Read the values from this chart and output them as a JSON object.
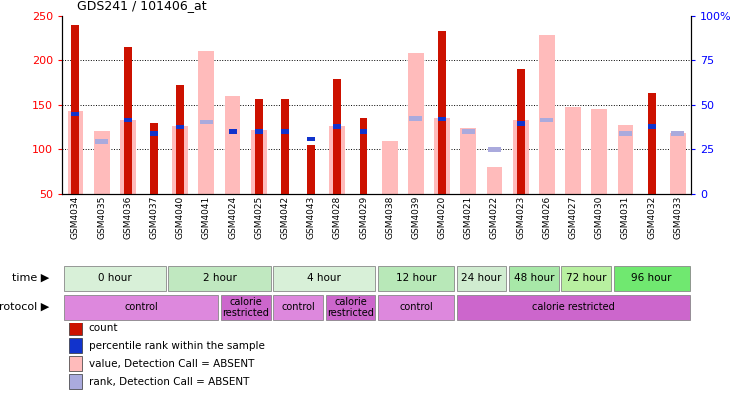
{
  "title": "GDS241 / 101406_at",
  "samples": [
    "GSM4034",
    "GSM4035",
    "GSM4036",
    "GSM4037",
    "GSM4040",
    "GSM4041",
    "GSM4024",
    "GSM4025",
    "GSM4042",
    "GSM4043",
    "GSM4028",
    "GSM4029",
    "GSM4038",
    "GSM4039",
    "GSM4020",
    "GSM4021",
    "GSM4022",
    "GSM4023",
    "GSM4026",
    "GSM4027",
    "GSM4030",
    "GSM4031",
    "GSM4032",
    "GSM4033"
  ],
  "count_values": [
    240,
    0,
    215,
    130,
    172,
    0,
    0,
    157,
    157,
    105,
    179,
    135,
    0,
    0,
    233,
    0,
    0,
    190,
    0,
    0,
    0,
    0,
    163,
    0
  ],
  "absent_value": [
    143,
    121,
    133,
    0,
    126,
    210,
    160,
    122,
    0,
    0,
    126,
    0,
    110,
    208,
    135,
    124,
    80,
    133,
    228,
    148,
    146,
    127,
    0,
    118
  ],
  "percentile_count": [
    140,
    0,
    133,
    118,
    125,
    0,
    120,
    120,
    120,
    112,
    126,
    120,
    0,
    0,
    134,
    0,
    0,
    129,
    0,
    0,
    0,
    0,
    126,
    0
  ],
  "percentile_absent": [
    0,
    109,
    0,
    0,
    0,
    131,
    0,
    0,
    0,
    0,
    0,
    0,
    0,
    135,
    0,
    120,
    100,
    0,
    133,
    0,
    0,
    118,
    0,
    118
  ],
  "time_labels": [
    {
      "label": "0 hour",
      "start": 0,
      "end": 4,
      "color": "#d8f0d8"
    },
    {
      "label": "2 hour",
      "start": 4,
      "end": 8,
      "color": "#c0e8c0"
    },
    {
      "label": "4 hour",
      "start": 8,
      "end": 12,
      "color": "#d8f0d8"
    },
    {
      "label": "12 hour",
      "start": 12,
      "end": 15,
      "color": "#b8e8b8"
    },
    {
      "label": "24 hour",
      "start": 15,
      "end": 17,
      "color": "#d0ecd0"
    },
    {
      "label": "48 hour",
      "start": 17,
      "end": 19,
      "color": "#a8e8a8"
    },
    {
      "label": "72 hour",
      "start": 19,
      "end": 21,
      "color": "#b8f0a0"
    },
    {
      "label": "96 hour",
      "start": 21,
      "end": 24,
      "color": "#70e870"
    }
  ],
  "protocol_labels": [
    {
      "label": "control",
      "start": 0,
      "end": 6,
      "color": "#dd88dd"
    },
    {
      "label": "calorie\nrestricted",
      "start": 6,
      "end": 8,
      "color": "#cc66cc"
    },
    {
      "label": "control",
      "start": 8,
      "end": 10,
      "color": "#dd88dd"
    },
    {
      "label": "calorie\nrestricted",
      "start": 10,
      "end": 12,
      "color": "#cc66cc"
    },
    {
      "label": "control",
      "start": 12,
      "end": 15,
      "color": "#dd88dd"
    },
    {
      "label": "calorie restricted",
      "start": 15,
      "end": 24,
      "color": "#cc66cc"
    }
  ],
  "ylim_left": [
    50,
    250
  ],
  "bar_width": 0.55,
  "count_color": "#cc1100",
  "absent_color": "#ffbbbb",
  "pct_count_color": "#1133cc",
  "pct_absent_color": "#aaaadd",
  "bg_color": "#ffffff"
}
